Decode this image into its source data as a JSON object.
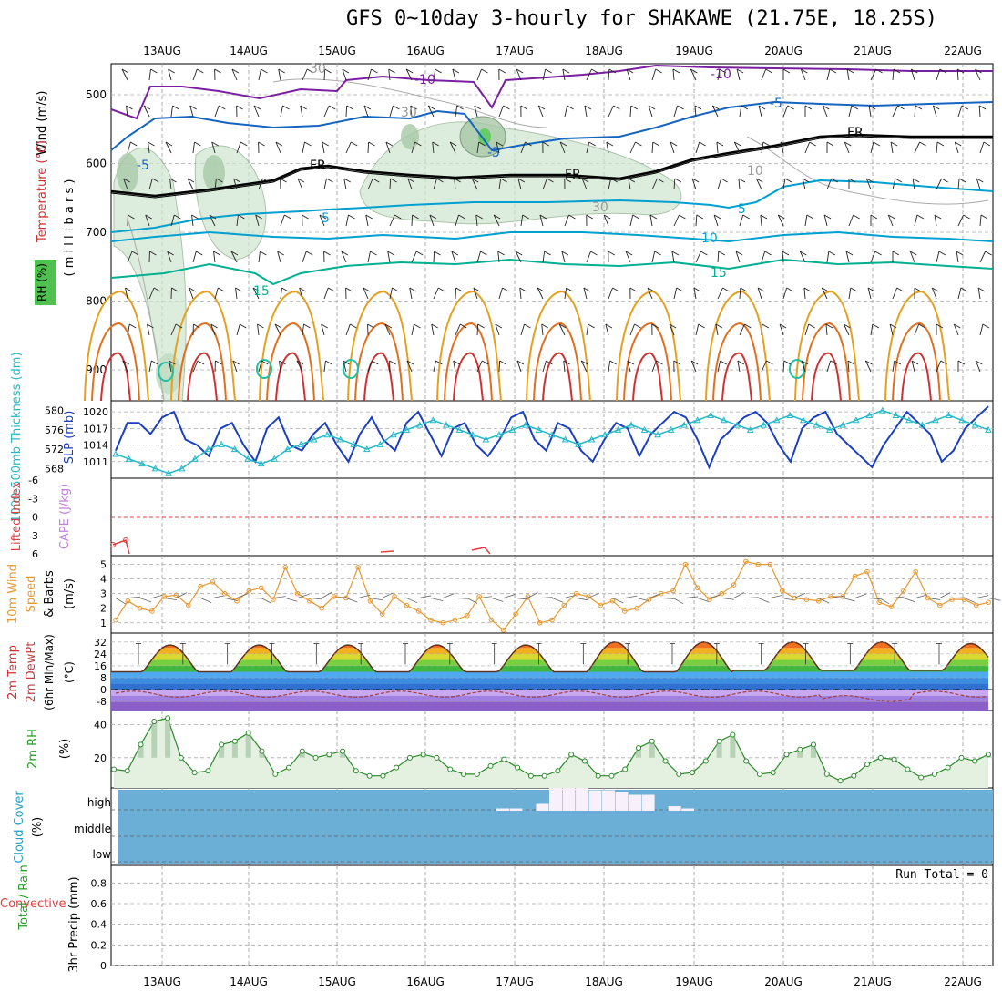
{
  "title": "GFS 0~10day 3-hourly for SHAKAWE (21.75E, 18.25S)",
  "dates": [
    "13AUG",
    "14AUG",
    "15AUG",
    "16AUG",
    "17AUG",
    "18AUG",
    "19AUG",
    "20AUG",
    "21AUG",
    "22AUG"
  ],
  "panels": {
    "upper": {
      "ylabel_wind": "Wind (m/s)",
      "ylabel_temp": "Temperature (°C)",
      "ylabel_rh": "RH (%)",
      "ylabel_mb": "( m i l l i b a r s )",
      "yticks": [
        "500",
        "600",
        "700",
        "800",
        "900"
      ],
      "contour_labels": [
        "-10",
        "-10",
        "-5",
        "-5",
        "-5",
        "FR",
        "FR",
        "FR",
        "5",
        "5",
        "10",
        "15",
        "15",
        "30",
        "30",
        "30",
        "10"
      ]
    },
    "slp": {
      "ylabel_left": "1000-500mb Thickness (dm)",
      "ylabel_right": "SLP (mb)",
      "left_ticks": [
        "580",
        "576",
        "572",
        "568"
      ],
      "right_ticks": [
        "1020",
        "1017",
        "1014",
        "1011"
      ]
    },
    "cape": {
      "ylabel_a": "Lifted Index",
      "ylabel_b": "CAPE (J/kg)",
      "ticks": [
        "-6",
        "-3",
        "0",
        "3",
        "6"
      ]
    },
    "wind10": {
      "ylabel_a": "10m Wind",
      "ylabel_b": "Speed",
      "ylabel_c": "& Barbs",
      "ylabel_d": "(m/s)",
      "ticks": [
        "5",
        "4",
        "3",
        "2",
        "1"
      ]
    },
    "temp": {
      "ylabel_a": "2m Temp",
      "ylabel_b": "2m DewPt",
      "ylabel_c": "(6hr Min/Max)",
      "ylabel_d": "(°C)",
      "ticks": [
        "32",
        "24",
        "16",
        "8",
        "0",
        "-8"
      ]
    },
    "rh": {
      "ylabel_a": "2m RH",
      "ylabel_b": "(%)",
      "ticks": [
        "40",
        "20"
      ]
    },
    "cloud": {
      "ylabel_a": "Cloud Cover",
      "ylabel_b": "(%)",
      "levels": [
        "high",
        "middle",
        "low"
      ]
    },
    "precip": {
      "ylabel_a": "Total / Rain",
      "ylabel_b": "Convective",
      "ylabel_c": "3hr Precip (mm)",
      "ticks": [
        "0.8",
        "0.6",
        "0.4",
        "0.2",
        "0"
      ],
      "run_total": "Run Total = 0"
    }
  },
  "colors": {
    "rh_green": "#cfe6cf",
    "temp_purple": "#7b1fa2",
    "temp_blue": "#1565c0",
    "temp_cyan": "#00a0d0",
    "temp_teal": "#00b090",
    "temp_orange": "#e6a020",
    "temp_red": "#d03030",
    "slp_blue": "#1a3fc0",
    "thick_cyan": "#22b8c8",
    "wind_orange": "#e89830",
    "cloud_blue": "#6baed6"
  },
  "chart_data": {
    "type": "meteogram",
    "x": [
      "13AUG",
      "14AUG",
      "15AUG",
      "16AUG",
      "17AUG",
      "18AUG",
      "19AUG",
      "20AUG",
      "21AUG",
      "22AUG"
    ],
    "slp_mb": [
      1013,
      1018,
      1018,
      1016,
      1019,
      1020,
      1015,
      1014,
      1012,
      1017,
      1018,
      1014,
      1011,
      1017,
      1019,
      1014,
      1013,
      1016,
      1018,
      1014,
      1011,
      1016,
      1019,
      1015,
      1013,
      1018,
      1020,
      1016,
      1012,
      1017,
      1018,
      1014,
      1012,
      1015,
      1019,
      1020,
      1015,
      1013,
      1018,
      1017,
      1013,
      1011,
      1015,
      1018,
      1017,
      1012,
      1016,
      1018,
      1020,
      1019,
      1015,
      1010,
      1015,
      1017,
      1019,
      1020,
      1018,
      1014,
      1011,
      1017,
      1019,
      1020,
      1016,
      1014,
      1012,
      1010,
      1014,
      1017,
      1020,
      1018,
      1016,
      1011,
      1013,
      1017,
      1019,
      1021
    ],
    "thickness_dm": [
      571,
      570,
      569,
      568,
      567,
      568,
      570,
      572,
      573,
      572,
      570,
      569,
      570,
      572,
      573,
      574,
      575,
      574,
      573,
      572,
      573,
      575,
      576,
      577,
      578,
      577,
      576,
      575,
      574,
      575,
      576,
      577,
      576,
      575,
      574,
      573,
      574,
      575,
      576,
      577,
      576,
      575,
      576,
      577,
      578,
      579,
      578,
      577,
      576,
      577,
      578,
      579,
      578,
      577,
      576,
      577,
      578,
      579,
      580,
      579,
      578,
      577,
      578,
      579,
      578,
      577,
      576
    ],
    "wind10_ms": [
      1.2,
      2.5,
      2.0,
      1.8,
      2.8,
      2.9,
      2.2,
      3.5,
      3.8,
      3.0,
      2.5,
      3.2,
      3.4,
      2.6,
      4.8,
      3.0,
      2.5,
      2.0,
      2.8,
      2.7,
      4.8,
      2.5,
      1.6,
      2.8,
      2.2,
      1.8,
      1.2,
      1.0,
      1.2,
      1.5,
      2.8,
      1.2,
      0.5,
      1.6,
      2.8,
      1.0,
      1.2,
      2.2,
      3.0,
      2.8,
      2.2,
      2.5,
      1.8,
      2.0,
      2.6,
      3.0,
      3.2,
      5.0,
      3.4,
      2.6,
      3.0,
      3.6,
      5.2,
      5.0,
      5.0,
      3.2,
      2.7,
      2.6,
      2.5,
      2.8,
      2.8,
      4.2,
      4.5,
      2.4,
      2.1,
      3.2,
      4.5,
      2.7,
      2.2,
      2.6,
      2.6,
      2.2,
      2.4
    ],
    "temp_c_max": [
      30,
      30,
      30,
      30,
      30,
      32,
      32,
      32,
      32,
      31
    ],
    "temp_c_min": [
      12,
      12,
      12,
      12,
      12,
      12,
      12,
      13,
      13,
      13
    ],
    "dewpt_c": [
      0,
      -2,
      -3,
      -4,
      -3,
      -3,
      -4,
      -5,
      -6,
      -4
    ],
    "rh2m_pct": [
      13,
      12,
      28,
      42,
      44,
      20,
      11,
      12,
      28,
      30,
      35,
      24,
      10,
      14,
      24,
      20,
      22,
      24,
      12,
      9,
      9,
      14,
      20,
      22,
      20,
      13,
      10,
      10,
      15,
      19,
      14,
      9,
      9,
      12,
      22,
      18,
      9,
      9,
      13,
      26,
      30,
      18,
      10,
      11,
      18,
      30,
      34,
      18,
      10,
      11,
      22,
      25,
      28,
      10,
      6,
      9,
      16,
      20,
      19,
      13,
      8,
      10,
      14,
      20,
      18,
      22
    ],
    "cloud_high_pct": [
      0,
      0,
      0,
      0,
      0,
      0,
      0,
      0,
      0,
      0,
      0,
      0,
      0,
      0,
      0,
      0,
      0,
      0,
      0,
      0,
      0,
      0,
      0,
      0,
      0,
      0,
      0,
      0,
      0,
      10,
      10,
      0,
      30,
      100,
      100,
      100,
      90,
      90,
      80,
      70,
      70,
      0,
      20,
      10,
      0,
      0,
      0,
      0,
      0,
      0,
      0,
      0,
      0,
      0,
      0,
      0,
      0,
      0,
      0,
      0,
      0,
      0,
      0,
      0,
      0,
      0,
      0
    ],
    "precip_mm_total": 0,
    "ylim_precip": [
      0,
      0.9
    ]
  }
}
